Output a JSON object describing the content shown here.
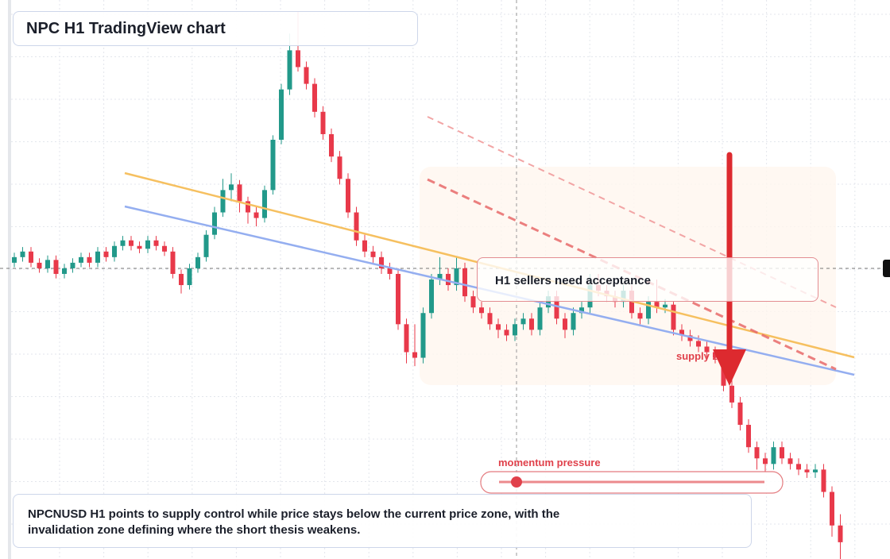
{
  "chart_data": {
    "type": "candlestick",
    "title": "NPC H1 TradingView chart",
    "annotation": "H1 sellers need acceptance",
    "zone_label": "supply zone",
    "momentum_label": "momentum pressure",
    "summary": "NPCNUSD H1 points to supply control while price stays below the current price zone, with the invalidation zone defining where the short thesis weakens.",
    "up_color": "#22998a",
    "down_color": "#e8394a",
    "ylim": [
      0,
      100
    ],
    "candles": [
      [
        53,
        54.8,
        52.2,
        54
      ],
      [
        54,
        55.8,
        53.2,
        55
      ],
      [
        55,
        55.8,
        52.2,
        53
      ],
      [
        53,
        53.8,
        51.2,
        52
      ],
      [
        52,
        54.3,
        51.2,
        53.5
      ],
      [
        53.5,
        54.3,
        50.2,
        51
      ],
      [
        51,
        52.8,
        50.2,
        52
      ],
      [
        52,
        53.8,
        51.2,
        53
      ],
      [
        53,
        54.8,
        52.2,
        54
      ],
      [
        54,
        54.8,
        52.2,
        53
      ],
      [
        53,
        55.8,
        52.2,
        55
      ],
      [
        55,
        55.8,
        53.2,
        54
      ],
      [
        54,
        56.8,
        53.2,
        56
      ],
      [
        56,
        57.8,
        55.2,
        57
      ],
      [
        57,
        57.8,
        55.2,
        56
      ],
      [
        56,
        56.8,
        54.7,
        55.5
      ],
      [
        55.5,
        57.8,
        54.7,
        57
      ],
      [
        57,
        57.8,
        55.2,
        56
      ],
      [
        56,
        56.8,
        54.2,
        55
      ],
      [
        55,
        55.8,
        50.2,
        51
      ],
      [
        51,
        51.8,
        47.5,
        49
      ],
      [
        49,
        52.8,
        48.2,
        52
      ],
      [
        52,
        54.8,
        51.2,
        54
      ],
      [
        54,
        58.8,
        53.2,
        58
      ],
      [
        58,
        63,
        57.2,
        62
      ],
      [
        62,
        68,
        61.2,
        66
      ],
      [
        66,
        69,
        64,
        67
      ],
      [
        67,
        67.8,
        62,
        64
      ],
      [
        64,
        64.8,
        60,
        62
      ],
      [
        62,
        63,
        59.5,
        61
      ],
      [
        61,
        66.8,
        60.2,
        66
      ],
      [
        66,
        75.8,
        65.2,
        75
      ],
      [
        75,
        85,
        74.2,
        84
      ],
      [
        84,
        94,
        83,
        91
      ],
      [
        91,
        98,
        87.2,
        88
      ],
      [
        88,
        89,
        84,
        85
      ],
      [
        85,
        86,
        79,
        80
      ],
      [
        80,
        81,
        75,
        76
      ],
      [
        76,
        77,
        71,
        72
      ],
      [
        72,
        73,
        67,
        68
      ],
      [
        68,
        69,
        61,
        62
      ],
      [
        62,
        63,
        56,
        57
      ],
      [
        57,
        58,
        54,
        55
      ],
      [
        55,
        56,
        53,
        54
      ],
      [
        54,
        55,
        51,
        52
      ],
      [
        52,
        53,
        50,
        51
      ],
      [
        51,
        52,
        41,
        42
      ],
      [
        42,
        43,
        35,
        37
      ],
      [
        37,
        42,
        34.5,
        36
      ],
      [
        36,
        45,
        35,
        44
      ],
      [
        44,
        51,
        43,
        50
      ],
      [
        50,
        54,
        49,
        51
      ],
      [
        51,
        52,
        48,
        49
      ],
      [
        49,
        54,
        48,
        52
      ],
      [
        52,
        53,
        46,
        47
      ],
      [
        47,
        48,
        44,
        45
      ],
      [
        45,
        46,
        43,
        44
      ],
      [
        44,
        45,
        41,
        42
      ],
      [
        42,
        43,
        39.5,
        41
      ],
      [
        41,
        42,
        39,
        40
      ],
      [
        40,
        43,
        39,
        42
      ],
      [
        42,
        44,
        41,
        43
      ],
      [
        43,
        44,
        40,
        41
      ],
      [
        41,
        46,
        40,
        45
      ],
      [
        45,
        48,
        44,
        47
      ],
      [
        47,
        48,
        42,
        43
      ],
      [
        43,
        44,
        39.5,
        41
      ],
      [
        41,
        45,
        40,
        44
      ],
      [
        44,
        46,
        43,
        45
      ],
      [
        45,
        51,
        44,
        49
      ],
      [
        49,
        51,
        47,
        48
      ],
      [
        48,
        49,
        46,
        47
      ],
      [
        47,
        48,
        45,
        46
      ],
      [
        46,
        49,
        45,
        48
      ],
      [
        48,
        49,
        43,
        44
      ],
      [
        44,
        45,
        42,
        43
      ],
      [
        43,
        47,
        42,
        46
      ],
      [
        46,
        50,
        44,
        45
      ],
      [
        45,
        46.5,
        44,
        45.5
      ],
      [
        45.5,
        46,
        40,
        41
      ],
      [
        41,
        42,
        39,
        40
      ],
      [
        40,
        41,
        38,
        39
      ],
      [
        39,
        40,
        37,
        38
      ],
      [
        38,
        39,
        36,
        37
      ],
      [
        37,
        38,
        35,
        36
      ],
      [
        36,
        37,
        30,
        31
      ],
      [
        31,
        32,
        27,
        28
      ],
      [
        28,
        29,
        23,
        24
      ],
      [
        24,
        25,
        19,
        20
      ],
      [
        20,
        21,
        16,
        18
      ],
      [
        18,
        19,
        15.5,
        17
      ],
      [
        17,
        21,
        16,
        20
      ],
      [
        20,
        21,
        17,
        18
      ],
      [
        18,
        19,
        16,
        17
      ],
      [
        17,
        18,
        15,
        16
      ],
      [
        16,
        17,
        14.5,
        15.5
      ],
      [
        15.5,
        17,
        14.5,
        16
      ],
      [
        16,
        17,
        11,
        12
      ],
      [
        12,
        13,
        4,
        6
      ],
      [
        6,
        8,
        0,
        3
      ]
    ]
  }
}
